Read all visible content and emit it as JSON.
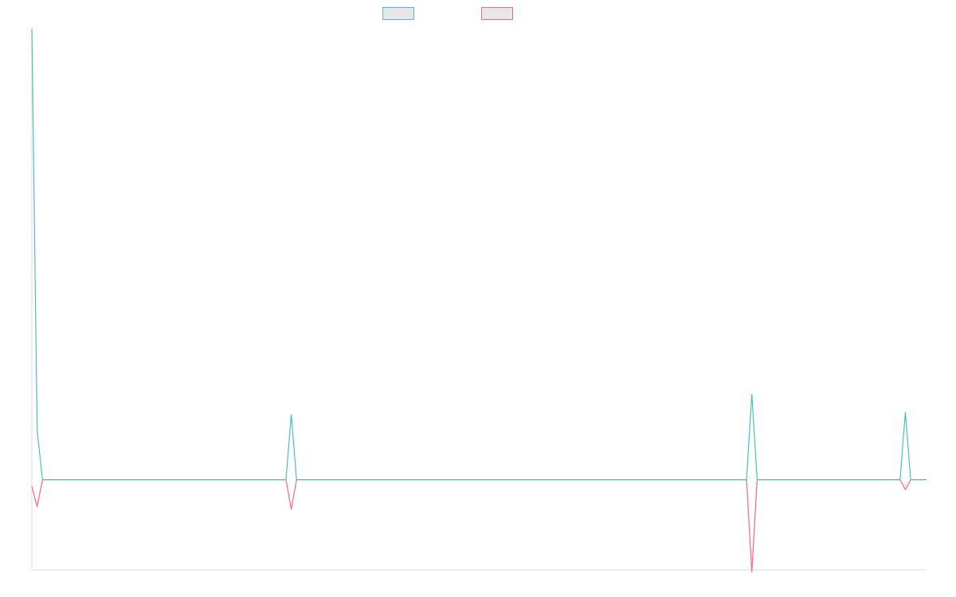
{
  "chart_data": {
    "type": "line",
    "title": "",
    "xlabel": "",
    "ylabel": "",
    "grid": false,
    "legend_placement": "top-center",
    "ylim": [
      -0.2,
      1.0
    ],
    "x_count": 170,
    "series": [
      {
        "name": "",
        "color": "#4bc0c0",
        "points": [
          [
            0,
            1.0
          ],
          [
            1,
            0.11
          ],
          [
            2,
            0
          ],
          [
            48,
            0
          ],
          [
            49,
            0.145
          ],
          [
            50,
            0
          ],
          [
            135,
            0
          ],
          [
            136,
            0.19
          ],
          [
            137,
            0
          ],
          [
            164,
            0
          ],
          [
            165,
            0.15
          ],
          [
            166,
            0
          ],
          [
            169,
            0
          ]
        ]
      },
      {
        "name": "",
        "color": "#ff6384",
        "points": [
          [
            0,
            -0.015
          ],
          [
            1,
            -0.06
          ],
          [
            2,
            0
          ],
          [
            48,
            0
          ],
          [
            49,
            -0.066
          ],
          [
            50,
            0
          ],
          [
            135,
            0
          ],
          [
            136,
            -0.205
          ],
          [
            137,
            0
          ],
          [
            164,
            0
          ],
          [
            165,
            -0.022
          ],
          [
            166,
            0
          ],
          [
            169,
            0
          ]
        ]
      }
    ]
  }
}
